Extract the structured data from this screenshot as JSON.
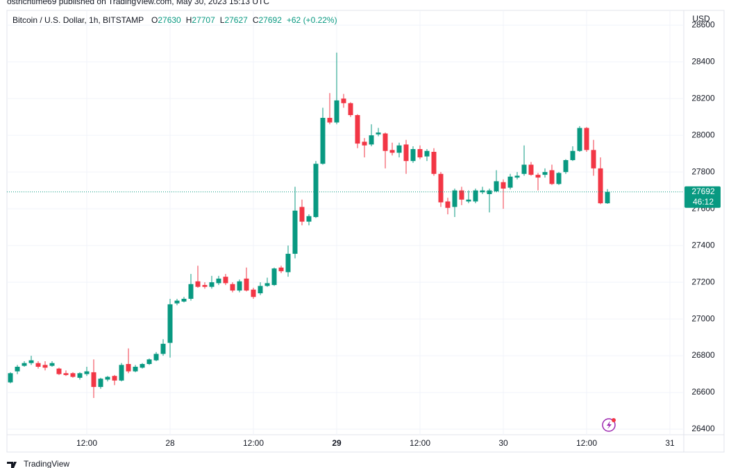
{
  "header": {
    "published": "ostrichtime69 published on TradingView.com, May 30, 2023 15:13 UTC",
    "symbol": "Bitcoin / U.S. Dollar, 1h, BITSTAMP",
    "ohlc_labels": [
      "O",
      "H",
      "L",
      "C"
    ],
    "change": "+62 (+0.22%)",
    "currency": "USD",
    "countdown": "46:12",
    "brand": "TradingView"
  },
  "chart_data": {
    "type": "candlestick",
    "up_color": "#089981",
    "down_color": "#f23645",
    "grid": true,
    "xlim": [
      -0.5,
      97
    ],
    "xticks": [
      {
        "value": 11,
        "label": "12:00"
      },
      {
        "value": 23,
        "label": "28"
      },
      {
        "value": 35,
        "label": "12:00"
      },
      {
        "value": 47,
        "label": "29"
      },
      {
        "value": 59,
        "label": "12:00"
      },
      {
        "value": 71,
        "label": "30"
      },
      {
        "value": 83,
        "label": "12:00"
      },
      {
        "value": 95,
        "label": "31"
      }
    ],
    "ylim": [
      26370,
      28680
    ],
    "yticks": [
      26400,
      26600,
      26800,
      27000,
      27200,
      27400,
      27600,
      27800,
      28000,
      28200,
      28400,
      28600
    ],
    "open": [
      26655,
      26715,
      26745,
      26760,
      26760,
      26750,
      26745,
      26730,
      26705,
      26705,
      26680,
      26700,
      26710,
      26630,
      26670,
      26690,
      26665,
      26755,
      26715,
      26735,
      26755,
      26775,
      26810,
      26870,
      27085,
      27095,
      27110,
      27205,
      27185,
      27175,
      27195,
      27230,
      27190,
      27155,
      27220,
      27160,
      27140,
      27180,
      27185,
      27280,
      27255,
      27355,
      27610,
      27530,
      27555,
      27845,
      28095,
      28070,
      28200,
      28175,
      28110,
      27965,
      27950,
      28005,
      28010,
      27920,
      27905,
      27950,
      27860,
      27925,
      27885,
      27910,
      27790,
      27640,
      27610,
      27700,
      27640,
      27640,
      27690,
      27680,
      27695,
      27745,
      27715,
      27770,
      27790,
      27840,
      27785,
      27785,
      27810,
      27735,
      27800,
      27865,
      27915,
      28040,
      27920,
      27820,
      27630
    ],
    "high": [
      26710,
      26750,
      26770,
      26800,
      26770,
      26770,
      26770,
      26735,
      26720,
      26710,
      26710,
      26740,
      26780,
      26680,
      26690,
      26695,
      26760,
      26840,
      26750,
      26760,
      26785,
      26820,
      26890,
      27110,
      27110,
      27120,
      27245,
      27290,
      27200,
      27235,
      27235,
      27245,
      27200,
      27215,
      27280,
      27170,
      27200,
      27225,
      27280,
      27290,
      27400,
      27720,
      27650,
      27570,
      27860,
      28150,
      28230,
      28450,
      28225,
      28180,
      28115,
      27985,
      28060,
      28040,
      28015,
      27960,
      27960,
      27975,
      27940,
      27945,
      27925,
      27930,
      27800,
      27660,
      27710,
      27720,
      27700,
      27710,
      27720,
      27710,
      27810,
      27760,
      27790,
      27800,
      27945,
      27855,
      27795,
      27820,
      27840,
      27800,
      27870,
      27940,
      28050,
      28045,
      27975,
      27880,
      27707
    ],
    "low": [
      26650,
      26700,
      26740,
      26750,
      26730,
      26720,
      26740,
      26695,
      26690,
      26680,
      26670,
      26690,
      26570,
      26620,
      26660,
      26640,
      26660,
      26705,
      26710,
      26730,
      26750,
      26770,
      26800,
      26790,
      27075,
      27090,
      27100,
      27170,
      27165,
      27165,
      27185,
      27185,
      27145,
      27145,
      27150,
      27110,
      27130,
      27175,
      27180,
      27250,
      27230,
      27330,
      27510,
      27510,
      27550,
      27840,
      28060,
      28060,
      28150,
      28100,
      27930,
      27880,
      27940,
      27995,
      27820,
      27890,
      27880,
      27790,
      27850,
      27870,
      27860,
      27780,
      27610,
      27570,
      27555,
      27620,
      27630,
      27630,
      27680,
      27580,
      27690,
      27600,
      27705,
      27760,
      27780,
      27780,
      27700,
      27770,
      27730,
      27730,
      27790,
      27860,
      27910,
      27910,
      27780,
      27625,
      27627
    ],
    "close": [
      26705,
      26740,
      26760,
      26775,
      26740,
      26735,
      26760,
      26700,
      26695,
      26685,
      26705,
      26715,
      26630,
      26675,
      26685,
      26665,
      26750,
      26715,
      26740,
      26755,
      26780,
      26810,
      26865,
      27080,
      27100,
      27110,
      27190,
      27175,
      27175,
      27200,
      27220,
      27195,
      27155,
      27205,
      27155,
      27120,
      27180,
      27195,
      27275,
      27260,
      27355,
      27590,
      27530,
      27560,
      27845,
      28095,
      28070,
      28190,
      28175,
      28110,
      27955,
      27945,
      28000,
      28015,
      27915,
      27905,
      27945,
      27860,
      27925,
      27880,
      27915,
      27790,
      27635,
      27605,
      27700,
      27650,
      27650,
      27700,
      27700,
      27700,
      27750,
      27710,
      27775,
      27780,
      27840,
      27785,
      27770,
      27800,
      27735,
      27795,
      27865,
      27915,
      28040,
      27920,
      27820,
      27630,
      27692
    ]
  }
}
